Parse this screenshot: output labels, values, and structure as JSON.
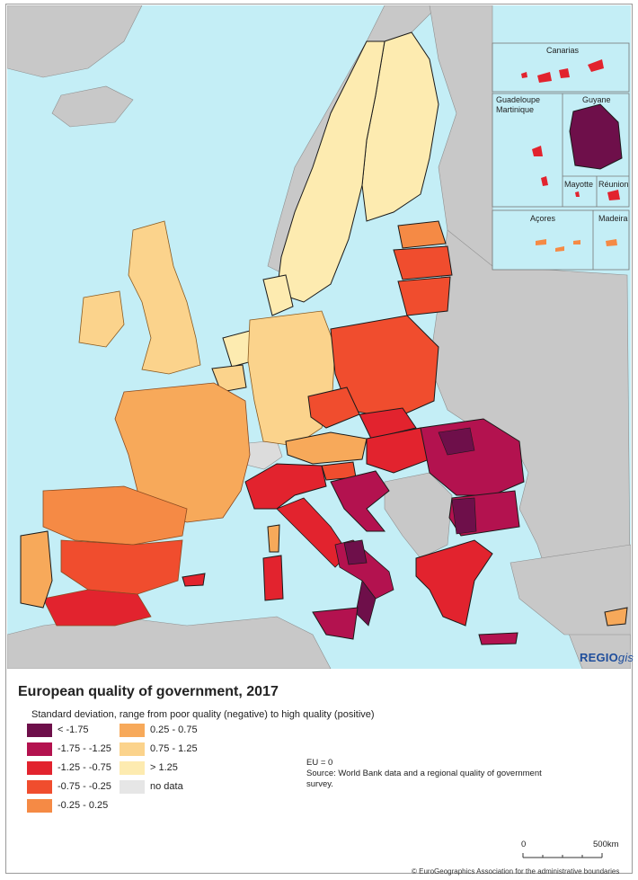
{
  "map": {
    "title": "European quality of government, 2017",
    "subtitle": "Standard deviation, range from poor quality (negative) to high quality (positive)",
    "insets": {
      "canarias": "Canarias",
      "guadeloupe": "Guadeloupe",
      "martinique": "Martinique",
      "guyane": "Guyane",
      "mayotte": "Mayotte",
      "reunion": "Réunion",
      "acores": "Açores",
      "madeira": "Madeira"
    },
    "logo_main": "REGIO",
    "logo_suffix": "gis",
    "notes": {
      "eu": "EU = 0",
      "source": "Source: World Bank data and a regional quality of government survey."
    },
    "scale": {
      "zero": "0",
      "max": "500",
      "unit": "km"
    },
    "copyright": "© EuroGeographics Association for the administrative boundaries",
    "colors": {
      "sea": "#c4eef6",
      "non_eu_land": "#c8c8c8",
      "border": "#1a1a1a"
    }
  },
  "legend": {
    "classes": [
      {
        "label": "< -1.75",
        "color": "#6e0f4a"
      },
      {
        "label": "-1.75 - -1.25",
        "color": "#b3124f"
      },
      {
        "label": "-1.25 - -0.75",
        "color": "#e2232e"
      },
      {
        "label": "-0.75 - -0.25",
        "color": "#f04d2e"
      },
      {
        "label": "-0.25 - 0.25",
        "color": "#f58a45"
      },
      {
        "label": "0.25 - 0.75",
        "color": "#f7a95a"
      },
      {
        "label": "0.75 - 1.25",
        "color": "#fbd38c"
      },
      {
        "label": "> 1.25",
        "color": "#fdebb0"
      },
      {
        "label": "no data",
        "color": "#e6e6e6"
      }
    ]
  }
}
